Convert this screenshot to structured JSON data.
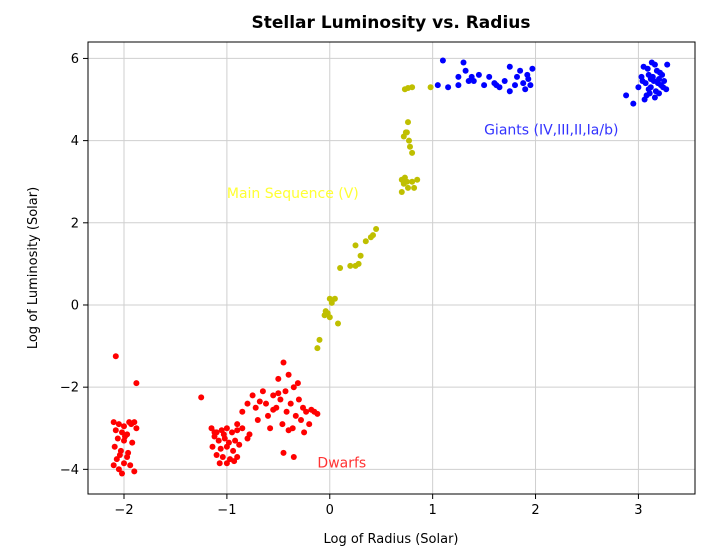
{
  "chart_data": {
    "type": "scatter",
    "title": "Stellar Luminosity vs. Radius",
    "xlabel": "Log of Radius (Solar)",
    "ylabel": "Log of Luminosity (Solar)",
    "xlim": [
      -2.35,
      3.55
    ],
    "ylim": [
      -4.6,
      6.4
    ],
    "x_ticks": [
      -2,
      -1,
      0,
      1,
      2,
      3
    ],
    "y_ticks": [
      -4,
      -2,
      0,
      2,
      4,
      6
    ],
    "grid": true,
    "annotations": [
      {
        "text": "Main Sequence (V)",
        "x": -1.0,
        "y": 2.6,
        "color": "#ffff33"
      },
      {
        "text": "Giants (IV,III,II,Ia/b)",
        "x": 1.5,
        "y": 4.15,
        "color": "#3333ff"
      },
      {
        "text": "Dwarfs",
        "x": -0.12,
        "y": -3.95,
        "color": "#ff3333"
      }
    ],
    "series": [
      {
        "color": "#ff0000",
        "points": [
          [
            -2.08,
            -1.25
          ],
          [
            -2.1,
            -2.85
          ],
          [
            -2.05,
            -2.9
          ],
          [
            -2.0,
            -2.95
          ],
          [
            -1.95,
            -2.85
          ],
          [
            -1.9,
            -2.85
          ],
          [
            -1.88,
            -3.0
          ],
          [
            -2.08,
            -3.05
          ],
          [
            -2.02,
            -3.1
          ],
          [
            -1.97,
            -3.15
          ],
          [
            -2.06,
            -3.25
          ],
          [
            -2.0,
            -3.3
          ],
          [
            -1.92,
            -3.35
          ],
          [
            -2.09,
            -3.45
          ],
          [
            -2.03,
            -3.55
          ],
          [
            -1.96,
            -3.6
          ],
          [
            -2.07,
            -3.75
          ],
          [
            -2.0,
            -3.85
          ],
          [
            -1.94,
            -3.9
          ],
          [
            -2.05,
            -4.0
          ],
          [
            -1.9,
            -4.05
          ],
          [
            -2.02,
            -4.1
          ],
          [
            -1.97,
            -3.7
          ],
          [
            -2.1,
            -3.9
          ],
          [
            -1.88,
            -1.9
          ],
          [
            -1.93,
            -2.9
          ],
          [
            -1.99,
            -3.2
          ],
          [
            -2.04,
            -3.65
          ],
          [
            -1.25,
            -2.25
          ],
          [
            -1.15,
            -3.0
          ],
          [
            -1.1,
            -3.1
          ],
          [
            -1.05,
            -3.05
          ],
          [
            -1.0,
            -3.0
          ],
          [
            -0.95,
            -3.1
          ],
          [
            -0.9,
            -3.05
          ],
          [
            -1.12,
            -3.2
          ],
          [
            -1.08,
            -3.3
          ],
          [
            -1.02,
            -3.25
          ],
          [
            -0.98,
            -3.35
          ],
          [
            -0.92,
            -3.3
          ],
          [
            -1.14,
            -3.45
          ],
          [
            -1.06,
            -3.5
          ],
          [
            -1.0,
            -3.45
          ],
          [
            -0.94,
            -3.55
          ],
          [
            -1.1,
            -3.65
          ],
          [
            -1.04,
            -3.7
          ],
          [
            -0.97,
            -3.75
          ],
          [
            -0.9,
            -3.7
          ],
          [
            -1.07,
            -3.85
          ],
          [
            -1.0,
            -3.85
          ],
          [
            -0.93,
            -3.8
          ],
          [
            -1.12,
            -3.1
          ],
          [
            -0.88,
            -3.4
          ],
          [
            -1.03,
            -3.15
          ],
          [
            -0.85,
            -3.0
          ],
          [
            -0.8,
            -3.25
          ],
          [
            -0.9,
            -2.9
          ],
          [
            -0.85,
            -2.6
          ],
          [
            -0.8,
            -2.4
          ],
          [
            -0.75,
            -2.2
          ],
          [
            -0.72,
            -2.5
          ],
          [
            -0.7,
            -2.8
          ],
          [
            -0.65,
            -2.1
          ],
          [
            -0.62,
            -2.4
          ],
          [
            -0.6,
            -2.7
          ],
          [
            -0.58,
            -3.0
          ],
          [
            -0.55,
            -2.2
          ],
          [
            -0.52,
            -2.5
          ],
          [
            -0.5,
            -1.8
          ],
          [
            -0.48,
            -2.3
          ],
          [
            -0.46,
            -2.9
          ],
          [
            -0.45,
            -1.4
          ],
          [
            -0.43,
            -2.1
          ],
          [
            -0.42,
            -2.6
          ],
          [
            -0.4,
            -1.7
          ],
          [
            -0.38,
            -2.4
          ],
          [
            -0.36,
            -3.0
          ],
          [
            -0.35,
            -2.0
          ],
          [
            -0.33,
            -2.7
          ],
          [
            -0.31,
            -1.9
          ],
          [
            -0.3,
            -2.3
          ],
          [
            -0.28,
            -2.8
          ],
          [
            -0.26,
            -2.5
          ],
          [
            -0.25,
            -3.1
          ],
          [
            -0.23,
            -2.6
          ],
          [
            -0.2,
            -2.9
          ],
          [
            -0.18,
            -2.55
          ],
          [
            -0.15,
            -2.6
          ],
          [
            -0.12,
            -2.65
          ],
          [
            -0.45,
            -3.6
          ],
          [
            -0.35,
            -3.7
          ],
          [
            -0.55,
            -2.55
          ],
          [
            -0.68,
            -2.35
          ],
          [
            -0.78,
            -3.15
          ],
          [
            -0.5,
            -2.15
          ],
          [
            -0.4,
            -3.05
          ]
        ]
      },
      {
        "color": "#bfbf00",
        "points": [
          [
            -0.12,
            -1.05
          ],
          [
            -0.1,
            -0.85
          ],
          [
            -0.05,
            -0.25
          ],
          [
            -0.04,
            -0.15
          ],
          [
            -0.02,
            -0.2
          ],
          [
            0.0,
            -0.3
          ],
          [
            0.02,
            0.05
          ],
          [
            0.0,
            0.15
          ],
          [
            0.05,
            0.15
          ],
          [
            0.08,
            -0.45
          ],
          [
            0.1,
            0.9
          ],
          [
            0.2,
            0.95
          ],
          [
            0.25,
            0.95
          ],
          [
            0.28,
            1.0
          ],
          [
            0.3,
            1.2
          ],
          [
            0.25,
            1.45
          ],
          [
            0.35,
            1.55
          ],
          [
            0.4,
            1.65
          ],
          [
            0.42,
            1.7
          ],
          [
            0.45,
            1.85
          ],
          [
            0.7,
            2.75
          ],
          [
            0.72,
            2.95
          ],
          [
            0.75,
            3.0
          ],
          [
            0.7,
            3.05
          ],
          [
            0.73,
            3.1
          ],
          [
            0.76,
            2.85
          ],
          [
            0.8,
            3.0
          ],
          [
            0.82,
            2.85
          ],
          [
            0.85,
            3.05
          ],
          [
            0.72,
            4.1
          ],
          [
            0.74,
            4.2
          ],
          [
            0.77,
            4.0
          ],
          [
            0.78,
            3.85
          ],
          [
            0.8,
            3.7
          ],
          [
            0.75,
            4.2
          ],
          [
            0.76,
            4.45
          ],
          [
            0.73,
            5.25
          ],
          [
            0.76,
            5.28
          ],
          [
            0.8,
            5.3
          ],
          [
            0.98,
            5.3
          ]
        ]
      },
      {
        "color": "#0000ff",
        "points": [
          [
            1.05,
            5.35
          ],
          [
            1.15,
            5.3
          ],
          [
            1.25,
            5.35
          ],
          [
            1.32,
            5.7
          ],
          [
            1.38,
            5.55
          ],
          [
            1.4,
            5.45
          ],
          [
            1.45,
            5.6
          ],
          [
            1.5,
            5.35
          ],
          [
            1.55,
            5.55
          ],
          [
            1.6,
            5.4
          ],
          [
            1.65,
            5.3
          ],
          [
            1.7,
            5.45
          ],
          [
            1.75,
            5.2
          ],
          [
            1.8,
            5.35
          ],
          [
            1.82,
            5.55
          ],
          [
            1.85,
            5.7
          ],
          [
            1.88,
            5.4
          ],
          [
            1.9,
            5.25
          ],
          [
            1.93,
            5.5
          ],
          [
            1.95,
            5.35
          ],
          [
            1.1,
            5.95
          ],
          [
            1.3,
            5.9
          ],
          [
            1.25,
            5.55
          ],
          [
            1.75,
            5.8
          ],
          [
            1.92,
            5.6
          ],
          [
            1.97,
            5.75
          ],
          [
            1.35,
            5.45
          ],
          [
            1.62,
            5.35
          ],
          [
            2.88,
            5.1
          ],
          [
            2.95,
            4.9
          ],
          [
            3.0,
            5.3
          ],
          [
            3.03,
            5.55
          ],
          [
            3.05,
            5.8
          ],
          [
            3.07,
            5.4
          ],
          [
            3.08,
            5.1
          ],
          [
            3.1,
            5.6
          ],
          [
            3.12,
            5.3
          ],
          [
            3.13,
            5.9
          ],
          [
            3.15,
            5.45
          ],
          [
            3.17,
            5.2
          ],
          [
            3.18,
            5.7
          ],
          [
            3.2,
            5.5
          ],
          [
            3.22,
            5.35
          ],
          [
            3.23,
            5.6
          ],
          [
            3.25,
            5.45
          ],
          [
            3.27,
            5.25
          ],
          [
            3.28,
            5.85
          ],
          [
            3.06,
            5.0
          ],
          [
            3.11,
            5.15
          ],
          [
            3.16,
            5.05
          ],
          [
            3.09,
            5.75
          ],
          [
            3.14,
            5.55
          ],
          [
            3.19,
            5.4
          ],
          [
            3.21,
            5.65
          ],
          [
            3.04,
            5.45
          ],
          [
            3.24,
            5.3
          ],
          [
            3.1,
            5.25
          ],
          [
            3.16,
            5.85
          ],
          [
            3.2,
            5.15
          ],
          [
            3.12,
            5.5
          ]
        ]
      }
    ]
  }
}
